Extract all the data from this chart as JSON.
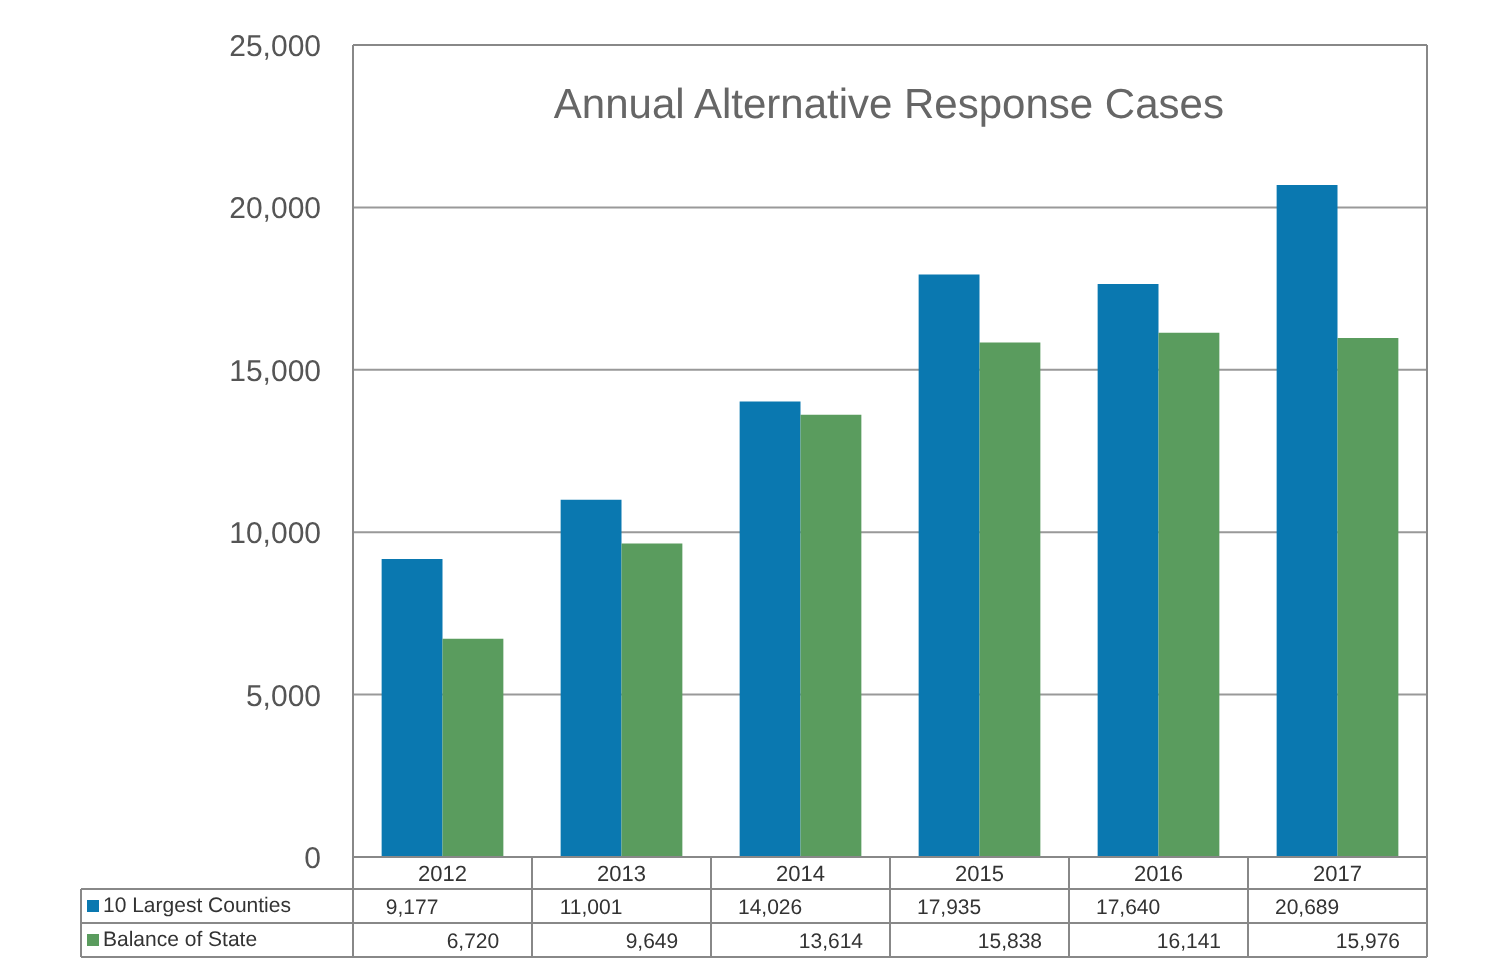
{
  "chart_data": {
    "type": "bar",
    "title": "Annual Alternative Response Cases",
    "categories": [
      "2012",
      "2013",
      "2014",
      "2015",
      "2016",
      "2017"
    ],
    "series": [
      {
        "name": "10 Largest Counties",
        "color": "#0a78b0",
        "values": [
          9177,
          11001,
          14026,
          17935,
          17640,
          20689
        ],
        "value_labels": [
          "9,177",
          "11,001",
          "14,026",
          "17,935",
          "17,640",
          "20,689"
        ]
      },
      {
        "name": "Balance of State",
        "color": "#5a9c5e",
        "values": [
          6720,
          9649,
          13614,
          15838,
          16141,
          15976
        ],
        "value_labels": [
          "6,720",
          "9,649",
          "13,614",
          "15,838",
          "16,141",
          "15,976"
        ]
      }
    ],
    "ylim": [
      0,
      25000
    ],
    "yticks": [
      0,
      {
        "value": 5000,
        "label": "5,000"
      },
      {
        "value": 10000,
        "label": "10,000"
      },
      {
        "value": 15000,
        "label": "15,000"
      },
      {
        "value": 20000,
        "label": "20,000"
      },
      {
        "value": 25000,
        "label": "25,000"
      }
    ],
    "grid": "y",
    "legend": "bottom"
  }
}
